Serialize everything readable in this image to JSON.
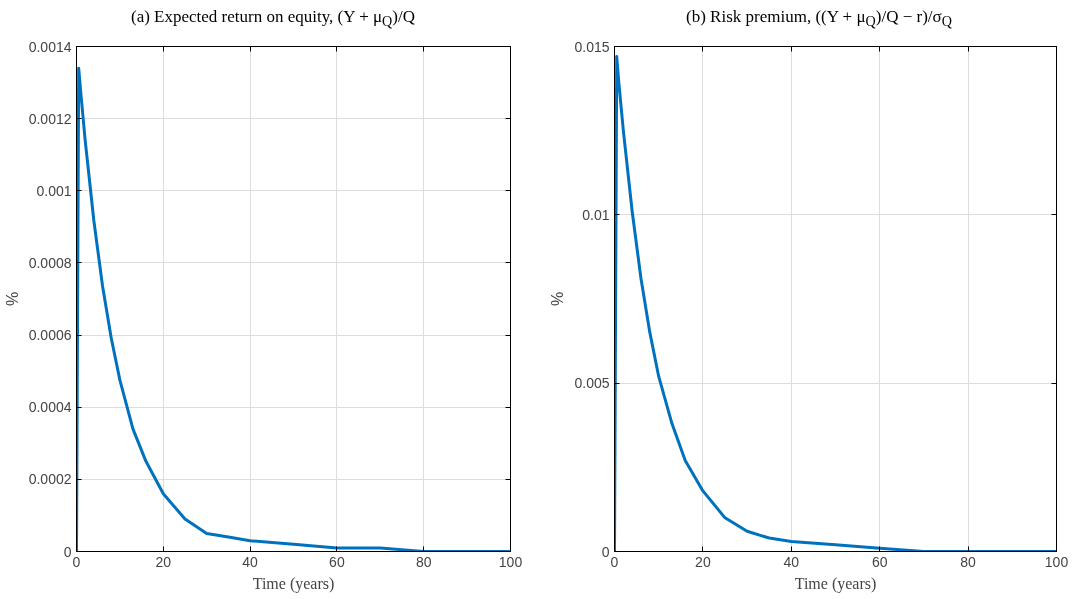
{
  "chart_data": [
    {
      "type": "line",
      "title": "(a) Expected return on equity, (Y + μ$_{Q}$)/Q",
      "xlabel": "Time (years)",
      "ylabel": "%",
      "x": [
        0,
        0.5,
        1,
        2,
        4,
        6,
        8,
        10,
        13,
        16,
        20,
        25,
        30,
        35,
        40,
        50,
        60,
        70,
        80,
        90,
        100
      ],
      "series": [
        {
          "color": "#0072bd",
          "values": [
            0,
            0.00134,
            0.00127,
            0.00114,
            0.000917,
            0.000736,
            0.000592,
            0.000475,
            0.00034,
            0.00025,
            0.00016,
            9e-05,
            5e-05,
            4e-05,
            3e-05,
            2e-05,
            1e-05,
            1e-05,
            0,
            0,
            0
          ]
        }
      ],
      "xlim": [
        0,
        100
      ],
      "xticks": [
        0,
        20,
        40,
        60,
        80,
        100
      ],
      "ylim": [
        0,
        0.0014
      ],
      "yticks": [
        0,
        0.0002,
        0.0004,
        0.0006,
        0.0008,
        0.001,
        0.0012,
        0.0014
      ],
      "grid": true,
      "marker": "none",
      "line_style": "solid"
    },
    {
      "type": "line",
      "title": "(b) Risk premium, ((Y + μ$_{Q}$)/Q − r)/σ$_{Q}$",
      "xlabel": "Time (years)",
      "ylabel": "%",
      "x": [
        0,
        0.5,
        1,
        2,
        4,
        6,
        8,
        10,
        13,
        16,
        20,
        25,
        30,
        35,
        40,
        50,
        60,
        70,
        80,
        90,
        100
      ],
      "series": [
        {
          "color": "#0072bd",
          "values": [
            0,
            0.0147,
            0.0139,
            0.0125,
            0.0101,
            0.0081,
            0.0065,
            0.0052,
            0.0038,
            0.0027,
            0.0018,
            0.001,
            0.0006,
            0.0004,
            0.0003,
            0.0002,
            0.0001,
            0,
            0,
            0,
            0
          ]
        }
      ],
      "xlim": [
        0,
        100
      ],
      "xticks": [
        0,
        20,
        40,
        60,
        80,
        100
      ],
      "ylim": [
        0,
        0.015
      ],
      "yticks": [
        0,
        0.005,
        0.01,
        0.015
      ],
      "grid": true,
      "marker": "none",
      "line_style": "solid"
    }
  ]
}
